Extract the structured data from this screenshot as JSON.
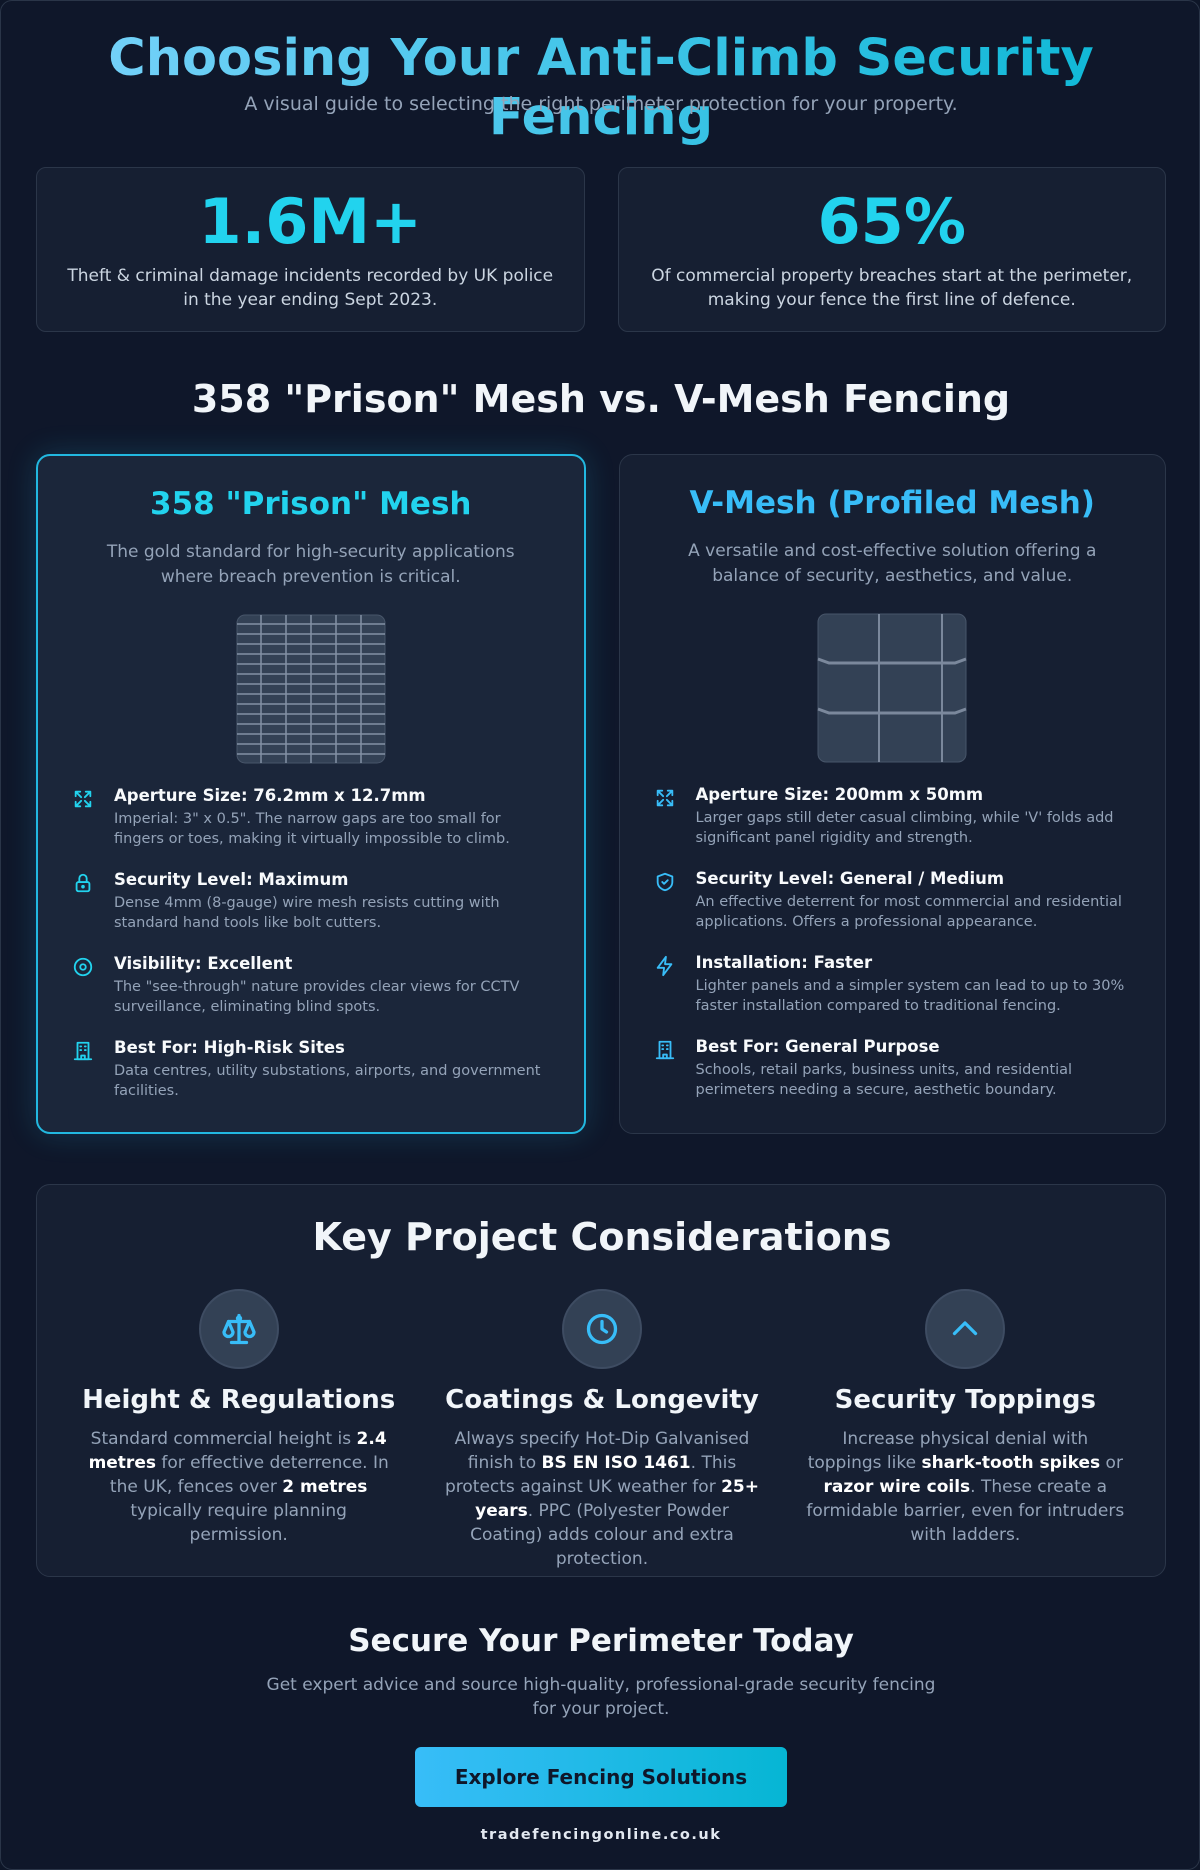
{
  "header": {
    "title": "Choosing Your Anti-Climb Security Fencing",
    "subtitle": "A visual guide to selecting the right perimeter protection for your property."
  },
  "stats": [
    {
      "value": "1.6M+",
      "text": "Theft & criminal damage incidents recorded by UK police in the year ending Sept 2023."
    },
    {
      "value": "65%",
      "text": "Of commercial property breaches start at the perimeter, making your fence the first line of defence."
    }
  ],
  "comparison": {
    "title": "358 \"Prison\" Mesh vs. V-Mesh Fencing",
    "cards": [
      {
        "title": "358 \"Prison\" Mesh",
        "description": "The gold standard for high-security applications where breach prevention is critical.",
        "features": [
          {
            "title": "Aperture Size: 76.2mm x 12.7mm",
            "text": "Imperial: 3\" x 0.5\". The narrow gaps are too small for fingers or toes, making it virtually impossible to climb."
          },
          {
            "title": "Security Level: Maximum",
            "text": "Dense 4mm (8-gauge) wire mesh resists cutting with standard hand tools like bolt cutters."
          },
          {
            "title": "Visibility: Excellent",
            "text": "The \"see-through\" nature provides clear views for CCTV surveillance, eliminating blind spots."
          },
          {
            "title": "Best For: High-Risk Sites",
            "text": "Data centres, utility substations, airports, and government facilities."
          }
        ]
      },
      {
        "title": "V-Mesh (Profiled Mesh)",
        "description": "A versatile and cost-effective solution offering a balance of security, aesthetics, and value.",
        "features": [
          {
            "title": "Aperture Size: 200mm x 50mm",
            "text": "Larger gaps still deter casual climbing, while 'V' folds add significant panel rigidity and strength."
          },
          {
            "title": "Security Level: General / Medium",
            "text": "An effective deterrent for most commercial and residential applications. Offers a professional appearance."
          },
          {
            "title": "Installation: Faster",
            "text": "Lighter panels and a simpler system can lead to up to 30% faster installation compared to traditional fencing."
          },
          {
            "title": "Best For: General Purpose",
            "text": "Schools, retail parks, business units, and residential perimeters needing a secure, aesthetic boundary."
          }
        ]
      }
    ]
  },
  "considerations": {
    "title": "Key Project Considerations",
    "items": [
      {
        "title": "Height & Regulations",
        "parts": [
          "Standard commercial height is ",
          "2.4 metres",
          " for effective deterrence. In the UK, fences over ",
          "2 metres",
          " typically require planning permission."
        ]
      },
      {
        "title": "Coatings & Longevity",
        "parts": [
          "Always specify Hot-Dip Galvanised finish to ",
          "BS EN ISO 1461",
          ". This protects against UK weather for ",
          "25+ years",
          ". PPC (Polyester Powder Coating) adds colour and extra protection."
        ]
      },
      {
        "title": "Security Toppings",
        "parts": [
          "Increase physical denial with toppings like ",
          "shark-tooth spikes",
          " or ",
          "razor wire coils",
          ". These create a formidable barrier, even for intruders with ladders."
        ]
      }
    ]
  },
  "cta": {
    "title": "Secure Your Perimeter Today",
    "text": "Get expert advice and source high-quality, professional-grade security fencing for your project.",
    "button": "Explore Fencing Solutions",
    "footer": "tradefencingonline.co.uk"
  }
}
